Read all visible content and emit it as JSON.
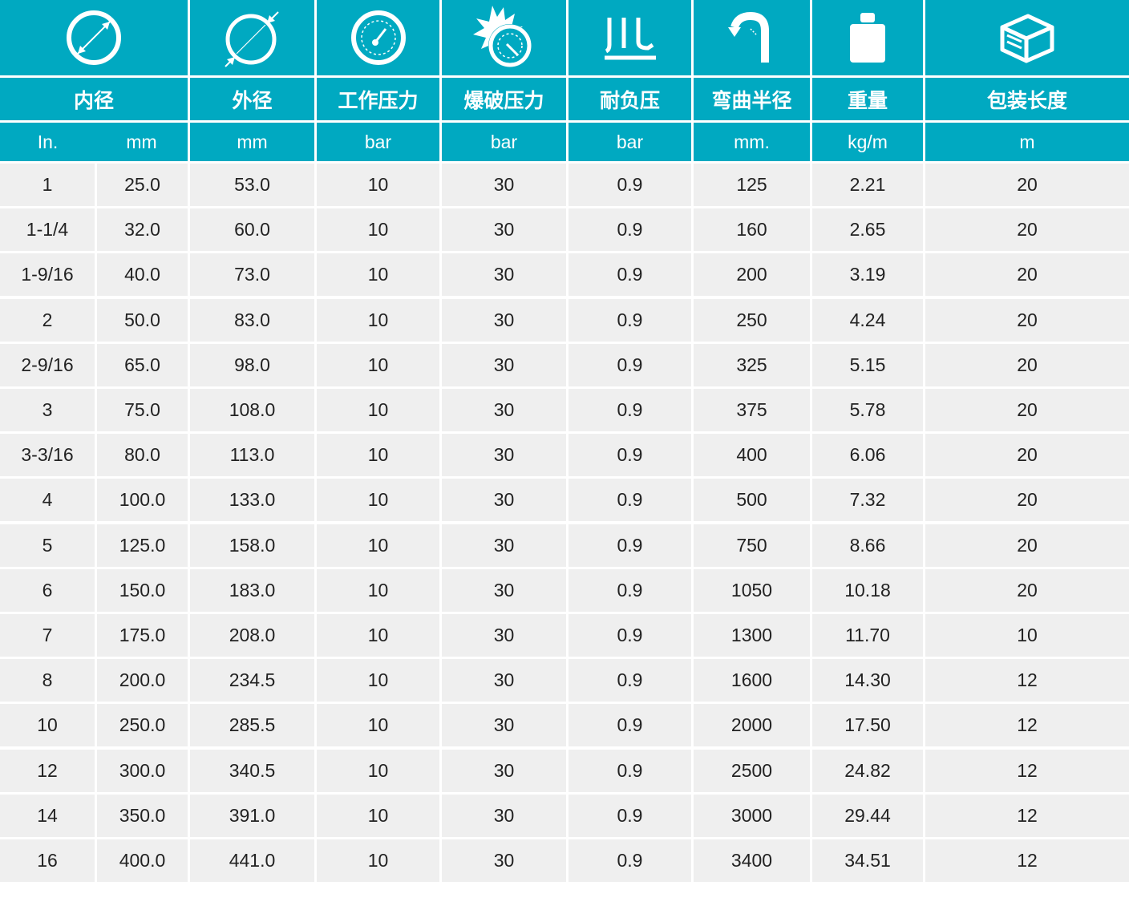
{
  "icons": [
    {
      "name": "inner-diameter-icon"
    },
    {
      "name": "outer-diameter-icon"
    },
    {
      "name": "pressure-gauge-icon"
    },
    {
      "name": "burst-pressure-icon"
    },
    {
      "name": "vacuum-icon"
    },
    {
      "name": "bend-radius-icon"
    },
    {
      "name": "weight-icon"
    },
    {
      "name": "package-box-icon"
    }
  ],
  "headers": {
    "inner_diameter": "内径",
    "outer_diameter": "外径",
    "working_pressure": "工作压力",
    "burst_pressure": "爆破压力",
    "vacuum": "耐负压",
    "bend_radius": "弯曲半径",
    "weight": "重量",
    "package_length": "包装长度"
  },
  "units": [
    "In.",
    "mm",
    "mm",
    "bar",
    "bar",
    "bar",
    "mm.",
    "kg/m",
    "m"
  ],
  "rows": [
    [
      "1",
      "25.0",
      "53.0",
      "10",
      "30",
      "0.9",
      "125",
      "2.21",
      "20"
    ],
    [
      "1-1/4",
      "32.0",
      "60.0",
      "10",
      "30",
      "0.9",
      "160",
      "2.65",
      "20"
    ],
    [
      "1-9/16",
      "40.0",
      "73.0",
      "10",
      "30",
      "0.9",
      "200",
      "3.19",
      "20"
    ],
    [
      "2",
      "50.0",
      "83.0",
      "10",
      "30",
      "0.9",
      "250",
      "4.24",
      "20"
    ],
    [
      "2-9/16",
      "65.0",
      "98.0",
      "10",
      "30",
      "0.9",
      "325",
      "5.15",
      "20"
    ],
    [
      "3",
      "75.0",
      "108.0",
      "10",
      "30",
      "0.9",
      "375",
      "5.78",
      "20"
    ],
    [
      "3-3/16",
      "80.0",
      "113.0",
      "10",
      "30",
      "0.9",
      "400",
      "6.06",
      "20"
    ],
    [
      "4",
      "100.0",
      "133.0",
      "10",
      "30",
      "0.9",
      "500",
      "7.32",
      "20"
    ],
    [
      "5",
      "125.0",
      "158.0",
      "10",
      "30",
      "0.9",
      "750",
      "8.66",
      "20"
    ],
    [
      "6",
      "150.0",
      "183.0",
      "10",
      "30",
      "0.9",
      "1050",
      "10.18",
      "20"
    ],
    [
      "7",
      "175.0",
      "208.0",
      "10",
      "30",
      "0.9",
      "1300",
      "11.70",
      "10"
    ],
    [
      "8",
      "200.0",
      "234.5",
      "10",
      "30",
      "0.9",
      "1600",
      "14.30",
      "12"
    ],
    [
      "10",
      "250.0",
      "285.5",
      "10",
      "30",
      "0.9",
      "2000",
      "17.50",
      "12"
    ],
    [
      "12",
      "300.0",
      "340.5",
      "10",
      "30",
      "0.9",
      "2500",
      "24.82",
      "12"
    ],
    [
      "14",
      "350.0",
      "391.0",
      "10",
      "30",
      "0.9",
      "3000",
      "29.44",
      "12"
    ],
    [
      "16",
      "400.0",
      "441.0",
      "10",
      "30",
      "0.9",
      "3400",
      "34.51",
      "12"
    ]
  ],
  "colors": {
    "header_bg": "#00a9c1",
    "row_bg": "#efefef",
    "text": "#222222"
  }
}
